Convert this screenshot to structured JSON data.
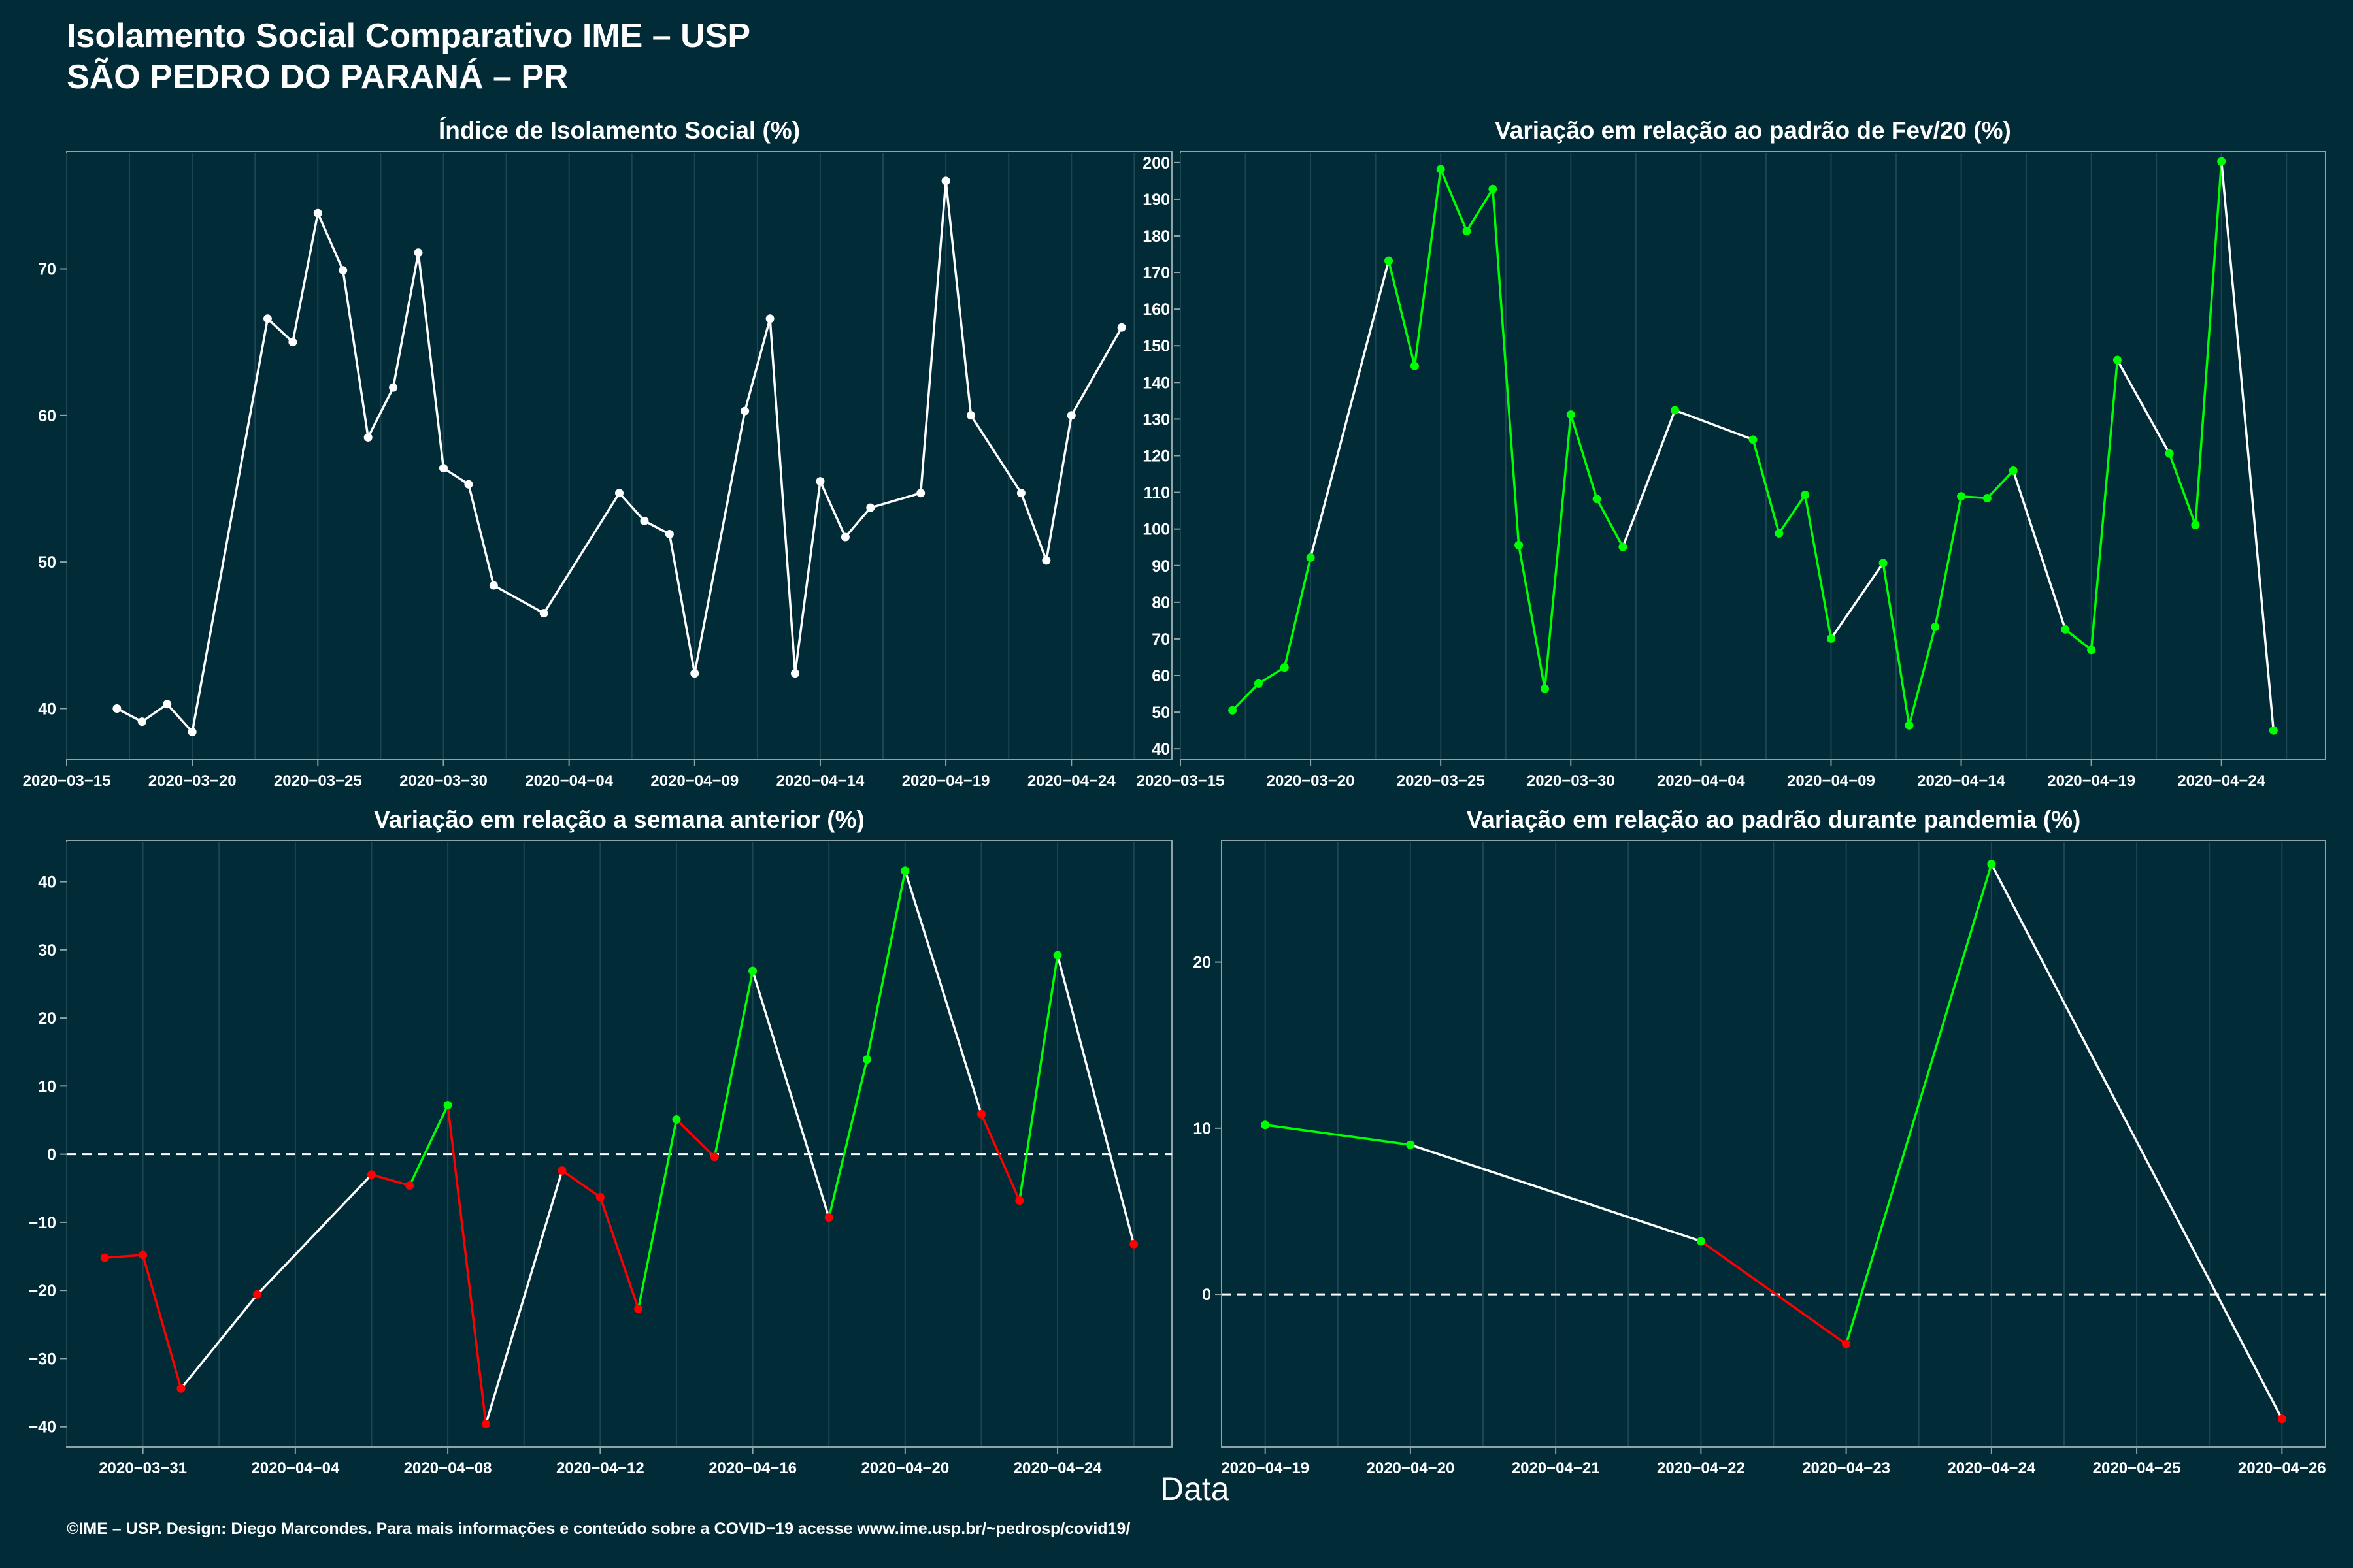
{
  "header": {
    "title_line1": "Isolamento Social Comparativo IME – USP",
    "title_line2": "SÃO PEDRO DO PARANÁ – PR"
  },
  "footer": {
    "text": "©IME – USP. Design: Diego Marcondes. Para mais informações e conteúdo sobre a COVID−19 acesse www.ime.usp.br/~pedrosp/covid19/"
  },
  "xlabel": "Data",
  "colors": {
    "background": "#022b38",
    "panel": "#022b38",
    "grid": "#1c4652",
    "line": "#ffffff",
    "up": "#00ff00",
    "down": "#ff0000"
  },
  "chart_data": [
    {
      "type": "line",
      "title": "Índice de Isolamento Social (%)",
      "x_tick_labels": [
        "2020−03−15",
        "2020−03−20",
        "2020−03−25",
        "2020−03−30",
        "2020−04−04",
        "2020−04−09",
        "2020−04−14",
        "2020−04−19",
        "2020−04−24"
      ],
      "y_ticks": [
        40,
        50,
        60,
        70
      ],
      "xlim": [
        "2020-03-15",
        "2020-04-28"
      ],
      "ylim": [
        36.5,
        78
      ],
      "x": [
        "2020-03-17",
        "2020-03-18",
        "2020-03-19",
        "2020-03-20",
        "2020-03-23",
        "2020-03-24",
        "2020-03-25",
        "2020-03-26",
        "2020-03-27",
        "2020-03-28",
        "2020-03-29",
        "2020-03-30",
        "2020-03-31",
        "2020-04-01",
        "2020-04-03",
        "2020-04-06",
        "2020-04-07",
        "2020-04-08",
        "2020-04-09",
        "2020-04-11",
        "2020-04-12",
        "2020-04-13",
        "2020-04-14",
        "2020-04-15",
        "2020-04-16",
        "2020-04-18",
        "2020-04-19",
        "2020-04-20",
        "2020-04-22",
        "2020-04-23",
        "2020-04-24",
        "2020-04-26"
      ],
      "y": [
        40.0,
        39.1,
        40.3,
        38.4,
        66.6,
        65.0,
        73.8,
        69.9,
        58.5,
        61.9,
        71.1,
        56.4,
        55.3,
        48.4,
        46.5,
        54.7,
        52.8,
        51.9,
        42.4,
        60.3,
        66.6,
        42.4,
        55.5,
        51.7,
        53.7,
        54.7,
        76.0,
        60.0,
        54.7,
        50.1,
        60.0,
        66.0
      ]
    },
    {
      "type": "line",
      "title": "Variação em relação ao padrão de Fev/20 (%)",
      "x_tick_labels": [
        "2020−03−15",
        "2020−03−20",
        "2020−03−25",
        "2020−03−30",
        "2020−04−04",
        "2020−04−09",
        "2020−04−14",
        "2020−04−19",
        "2020−04−24"
      ],
      "y_ticks": [
        40,
        50,
        60,
        70,
        80,
        90,
        100,
        110,
        120,
        130,
        140,
        150,
        160,
        170,
        180,
        190,
        200
      ],
      "xlim": [
        "2020-03-15",
        "2020-04-28"
      ],
      "ylim": [
        37,
        203
      ],
      "x": [
        "2020-03-17",
        "2020-03-18",
        "2020-03-19",
        "2020-03-20",
        "2020-03-23",
        "2020-03-24",
        "2020-03-25",
        "2020-03-26",
        "2020-03-27",
        "2020-03-28",
        "2020-03-29",
        "2020-03-30",
        "2020-03-31",
        "2020-04-01",
        "2020-04-03",
        "2020-04-06",
        "2020-04-07",
        "2020-04-08",
        "2020-04-09",
        "2020-04-11",
        "2020-04-12",
        "2020-04-13",
        "2020-04-14",
        "2020-04-15",
        "2020-04-16",
        "2020-04-18",
        "2020-04-19",
        "2020-04-20",
        "2020-04-22",
        "2020-04-23",
        "2020-04-24",
        "2020-04-26"
      ],
      "y": [
        50.5,
        57.8,
        62.2,
        92.2,
        173.2,
        144.5,
        198.2,
        181.3,
        192.8,
        95.6,
        56.4,
        131.2,
        108.2,
        95.1,
        132.4,
        124.4,
        98.8,
        109.3,
        70.1,
        90.7,
        46.4,
        73.3,
        108.9,
        108.4,
        115.9,
        72.6,
        67.0,
        146.1,
        120.6,
        101.1,
        200.3,
        45.0
      ],
      "segment_colors": [
        "up",
        "up",
        "up",
        "white",
        "up",
        "up",
        "up",
        "up",
        "up",
        "up",
        "up",
        "up",
        "up",
        "white",
        "white",
        "up",
        "up",
        "up",
        "white",
        "up",
        "up",
        "up",
        "up",
        "up",
        "white",
        "up",
        "up",
        "white",
        "up",
        "up",
        "white"
      ]
    },
    {
      "type": "line",
      "title": "Variação em relação a semana anterior (%)",
      "x_tick_labels": [
        "2020−03−31",
        "2020−04−04",
        "2020−04−08",
        "2020−04−12",
        "2020−04−16",
        "2020−04−20",
        "2020−04−24"
      ],
      "y_ticks": [
        -40,
        -30,
        -20,
        -10,
        0,
        10,
        20,
        30,
        40
      ],
      "reference_line": 0,
      "xlim": [
        "2020-03-29",
        "2020-04-27"
      ],
      "ylim": [
        -43,
        46
      ],
      "x": [
        "2020-03-30",
        "2020-03-31",
        "2020-04-01",
        "2020-04-03",
        "2020-04-06",
        "2020-04-07",
        "2020-04-08",
        "2020-04-09",
        "2020-04-11",
        "2020-04-12",
        "2020-04-13",
        "2020-04-14",
        "2020-04-15",
        "2020-04-16",
        "2020-04-18",
        "2020-04-19",
        "2020-04-20",
        "2020-04-22",
        "2020-04-23",
        "2020-04-24",
        "2020-04-26"
      ],
      "y": [
        -15.2,
        -14.8,
        -34.4,
        -20.6,
        -3.0,
        -4.6,
        7.2,
        -39.6,
        -2.4,
        -6.3,
        -22.7,
        5.1,
        -0.4,
        26.9,
        -9.3,
        13.9,
        41.6,
        5.9,
        -6.8,
        29.2,
        -13.2
      ],
      "point_colors": [
        "down",
        "down",
        "down",
        "down",
        "down",
        "down",
        "up",
        "down",
        "down",
        "down",
        "down",
        "up",
        "down",
        "up",
        "down",
        "up",
        "up",
        "down",
        "down",
        "up",
        "down"
      ],
      "segment_colors": [
        "down",
        "down",
        "white",
        "white",
        "down",
        "up",
        "down",
        "white",
        "down",
        "down",
        "up",
        "down",
        "up",
        "white",
        "up",
        "up",
        "white",
        "down",
        "up",
        "white"
      ]
    },
    {
      "type": "line",
      "title": "Variação em relação ao padrão durante pandemia (%)",
      "x_tick_labels": [
        "2020−04−19",
        "2020−04−20",
        "2020−04−21",
        "2020−04−22",
        "2020−04−23",
        "2020−04−24",
        "2020−04−25",
        "2020−04−26"
      ],
      "y_ticks": [
        0,
        10,
        20
      ],
      "reference_line": 0,
      "xlim": [
        "2020-04-18.7",
        "2020-04-26.3"
      ],
      "ylim": [
        -9.2,
        27.3
      ],
      "x": [
        "2020-04-19",
        "2020-04-20",
        "2020-04-22",
        "2020-04-23",
        "2020-04-24",
        "2020-04-26"
      ],
      "y": [
        10.2,
        9.0,
        3.2,
        -3.0,
        25.9,
        -7.5
      ],
      "point_colors": [
        "up",
        "up",
        "up",
        "down",
        "up",
        "down"
      ],
      "segment_colors": [
        "up",
        "white",
        "down",
        "up",
        "white"
      ]
    }
  ]
}
